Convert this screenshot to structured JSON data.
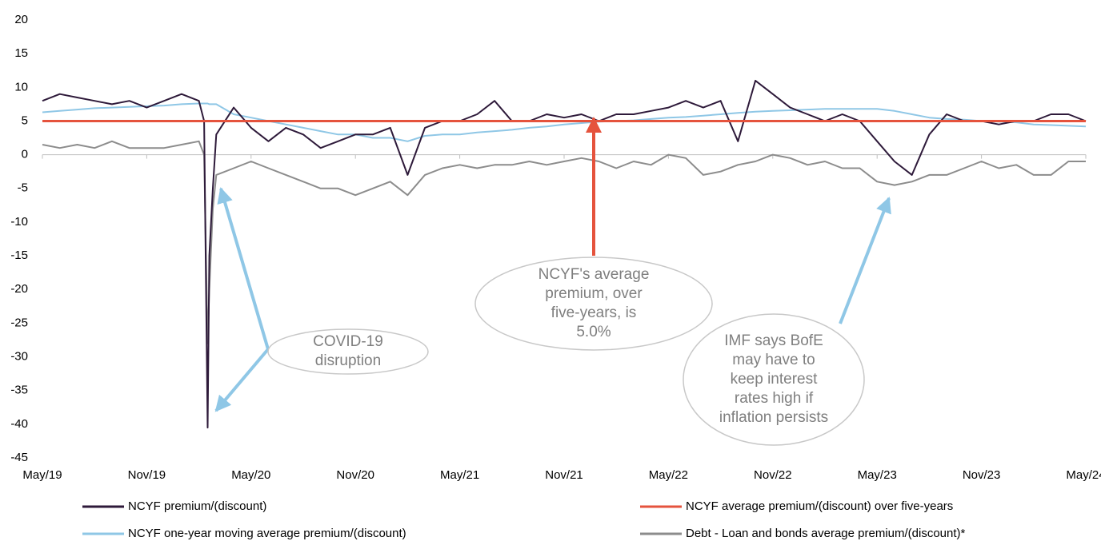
{
  "chart_data": {
    "type": "line",
    "x": [
      0,
      1,
      2,
      3,
      4,
      5,
      6,
      7,
      8,
      9,
      9.3,
      9.5,
      9.6,
      9.8,
      10,
      11,
      12,
      13,
      14,
      15,
      16,
      17,
      18,
      19,
      20,
      21,
      22,
      23,
      24,
      25,
      26,
      27,
      28,
      29,
      30,
      31,
      32,
      33,
      34,
      35,
      36,
      37,
      38,
      39,
      40,
      41,
      42,
      43,
      44,
      45,
      46,
      47,
      48,
      49,
      50,
      51,
      52,
      53,
      54,
      55,
      56,
      57,
      58,
      59,
      60
    ],
    "xlim": [
      0,
      60
    ],
    "xticks": [
      {
        "value": 0,
        "label": "May/19"
      },
      {
        "value": 6,
        "label": "Nov/19"
      },
      {
        "value": 12,
        "label": "May/20"
      },
      {
        "value": 18,
        "label": "Nov/20"
      },
      {
        "value": 24,
        "label": "May/21"
      },
      {
        "value": 30,
        "label": "Nov/21"
      },
      {
        "value": 36,
        "label": "May/22"
      },
      {
        "value": 42,
        "label": "Nov/22"
      },
      {
        "value": 48,
        "label": "May/23"
      },
      {
        "value": 54,
        "label": "Nov/23"
      },
      {
        "value": 60,
        "label": "May/24"
      }
    ],
    "ylim": [
      -45,
      20
    ],
    "yticks": [
      -45,
      -40,
      -35,
      -30,
      -25,
      -20,
      -15,
      -10,
      -5,
      0,
      5,
      10,
      15,
      20
    ],
    "series": [
      {
        "name": "NCYF premium/(discount)",
        "color": "#2e1a3a",
        "values": [
          8,
          9,
          8.5,
          8,
          7.5,
          8,
          7,
          8,
          9,
          8,
          5,
          -40.5,
          -15,
          -5,
          3,
          7,
          4,
          2,
          4,
          3,
          1,
          2,
          3,
          3,
          4,
          -3,
          4,
          5,
          5,
          6,
          8,
          5,
          5,
          6,
          5.5,
          6,
          5,
          6,
          6,
          6.5,
          7,
          8,
          7,
          8,
          2,
          11,
          9,
          7,
          6,
          5,
          6,
          5,
          2,
          -1,
          -3,
          3,
          6,
          5,
          5,
          4.5,
          5,
          5,
          6,
          6,
          5
        ]
      },
      {
        "name": "NCYF average premium/(discount) over five-years",
        "color": "#e5533d",
        "values": [
          5,
          5,
          5,
          5,
          5,
          5,
          5,
          5,
          5,
          5,
          5,
          5,
          5,
          5,
          5,
          5,
          5,
          5,
          5,
          5,
          5,
          5,
          5,
          5,
          5,
          5,
          5,
          5,
          5,
          5,
          5,
          5,
          5,
          5,
          5,
          5,
          5,
          5,
          5,
          5,
          5,
          5,
          5,
          5,
          5,
          5,
          5,
          5,
          5,
          5,
          5,
          5,
          5,
          5,
          5,
          5,
          5,
          5,
          5,
          5,
          5,
          5,
          5,
          5,
          5
        ]
      },
      {
        "name": "NCYF one-year moving average premium/(discount)",
        "color": "#8fc7e6",
        "values": [
          6.3,
          6.5,
          6.7,
          6.9,
          7,
          7.1,
          7.2,
          7.3,
          7.5,
          7.6,
          7.6,
          7.6,
          7.5,
          7.5,
          7.5,
          6,
          5.5,
          5,
          4.5,
          4,
          3.5,
          3,
          3,
          2.5,
          2.5,
          2,
          2.8,
          3,
          3,
          3.3,
          3.5,
          3.7,
          4,
          4.2,
          4.5,
          4.7,
          4.9,
          5,
          5.1,
          5.3,
          5.5,
          5.6,
          5.8,
          6,
          6.2,
          6.4,
          6.5,
          6.6,
          6.7,
          6.8,
          6.8,
          6.8,
          6.8,
          6.5,
          6,
          5.5,
          5.3,
          5.2,
          5,
          4.9,
          4.8,
          4.5,
          4.4,
          4.3,
          4.2
        ]
      },
      {
        "name": "Debt - Loan and bonds average premium/(discount)*",
        "color": "#8c8c8c",
        "values": [
          1.5,
          1,
          1.5,
          1,
          2,
          1,
          1,
          1,
          1.5,
          2,
          0,
          -28,
          -20,
          -8,
          -3,
          -2,
          -1,
          -2,
          -3,
          -4,
          -5,
          -5,
          -6,
          -5,
          -4,
          -6,
          -3,
          -2,
          -1.5,
          -2,
          -1.5,
          -1.5,
          -1,
          -1.5,
          -1,
          -0.5,
          -1,
          -2,
          -1,
          -1.5,
          0,
          -0.5,
          -3,
          -2.5,
          -1.5,
          -1,
          0,
          -0.5,
          -1.5,
          -1,
          -2,
          -2,
          -4,
          -4.5,
          -4,
          -3,
          -3,
          -2,
          -1,
          -2,
          -1.5,
          -3,
          -3,
          -1,
          -1
        ]
      }
    ],
    "annotations": [
      {
        "lines": [
          "COVID-19",
          "disruption"
        ]
      },
      {
        "lines": [
          "NCYF's average",
          "premium, over",
          "five-years, is",
          "5.0%"
        ]
      },
      {
        "lines": [
          "IMF says BofE",
          "may have to",
          "keep interest",
          "rates high if",
          "inflation persists"
        ]
      }
    ]
  }
}
